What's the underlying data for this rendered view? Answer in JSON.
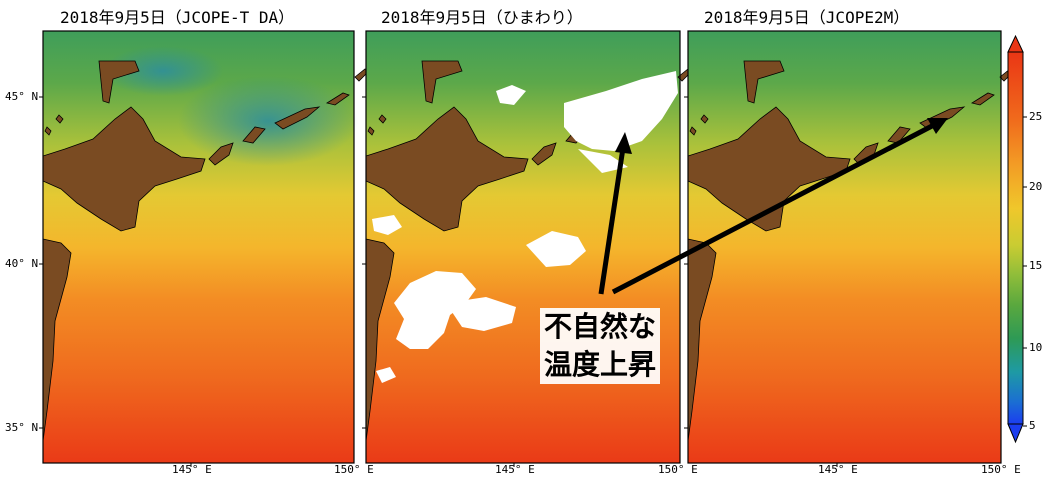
{
  "panels": [
    {
      "id": "jcope-t-da",
      "title": "2018年9月5日（JCOPE-T DA）"
    },
    {
      "id": "himawari",
      "title": "2018年9月5日（ひまわり）"
    },
    {
      "id": "jcope2m",
      "title": "2018年9月5日（JCOPE2M）"
    }
  ],
  "lat_labels": [
    "45° N",
    "40° N",
    "35° N"
  ],
  "lon_labels": [
    "145° E",
    "150° E"
  ],
  "colorbar": {
    "ticks": [
      "25",
      "20",
      "15",
      "10",
      "5"
    ],
    "colors": [
      "#1b3df0",
      "#1b6fd2",
      "#1e9aa4",
      "#2e9a55",
      "#5aa83e",
      "#8fbd3a",
      "#c9cc32",
      "#f0c72b",
      "#f39b25",
      "#f06a1c",
      "#ea3615"
    ]
  },
  "annotation": {
    "line1": "不自然な",
    "line2": "温度上昇"
  },
  "colors": {
    "land": "#7a4b22",
    "cloud": "#ffffff",
    "arrow": "#000000"
  }
}
